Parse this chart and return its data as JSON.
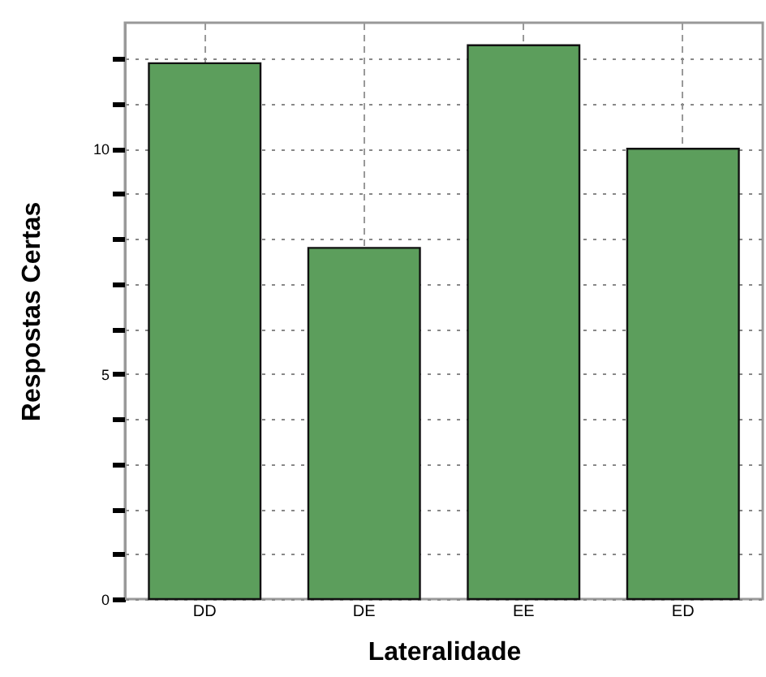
{
  "chart_data": {
    "type": "bar",
    "xlabel": "Lateralidade",
    "ylabel": "Respostas  Certas",
    "categories": [
      "DD",
      "DE",
      "EE",
      "ED"
    ],
    "values": [
      11.9,
      7.8,
      12.3,
      10.0
    ],
    "color": "#5c9e5c",
    "ylim": [
      0,
      12.8
    ],
    "yticks": [
      0,
      {
        "value": 1,
        "label": null
      },
      {
        "value": 2,
        "label": null
      },
      {
        "value": 3,
        "label": null
      },
      {
        "value": 4,
        "label": null
      },
      5,
      {
        "value": 6,
        "label": null
      },
      {
        "value": 7,
        "label": null
      },
      {
        "value": 8,
        "label": null
      },
      {
        "value": 9,
        "label": null
      },
      10,
      {
        "value": 11,
        "label": null
      },
      {
        "value": 12,
        "label": null
      }
    ],
    "grid": true
  }
}
